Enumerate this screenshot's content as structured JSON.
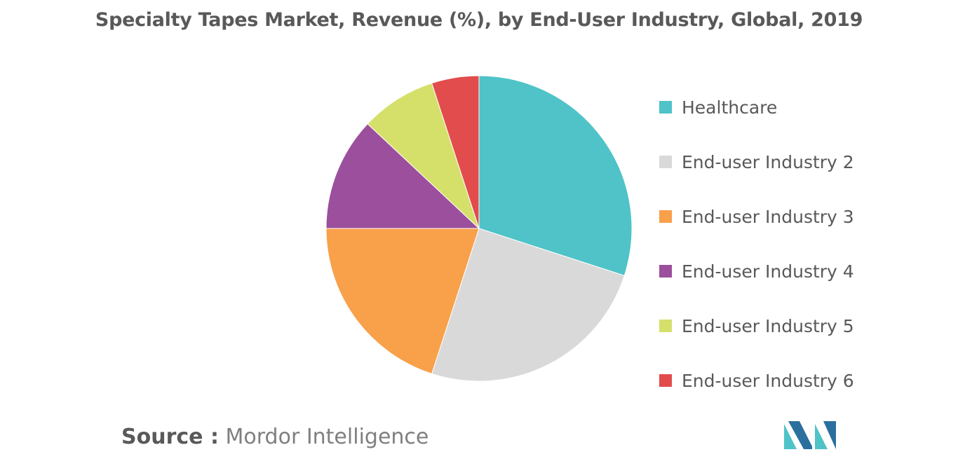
{
  "chart_data": {
    "type": "pie",
    "title": "Specialty Tapes Market, Revenue (%), by End-User Industry, Global, 2019",
    "categories": [
      "Healthcare",
      "End-user Industry 2",
      "End-user Industry 3",
      "End-user Industry 4",
      "End-user Industry 5",
      "End-user Industry 6"
    ],
    "values": [
      30,
      25,
      20,
      12,
      8,
      5
    ],
    "colors": [
      "#4fc3c8",
      "#d9d9d9",
      "#f9a04a",
      "#9b4f9c",
      "#d4e06a",
      "#e24c4c"
    ],
    "legend_position": "right",
    "start_angle": "12 o'clock",
    "direction": "clockwise"
  },
  "footer": {
    "source_label": "Source :",
    "source_text": "Mordor Intelligence"
  },
  "logo": {
    "icon": "mordor-intelligence-logo",
    "colors": [
      "#4fc3c8",
      "#2b6f9e"
    ]
  }
}
